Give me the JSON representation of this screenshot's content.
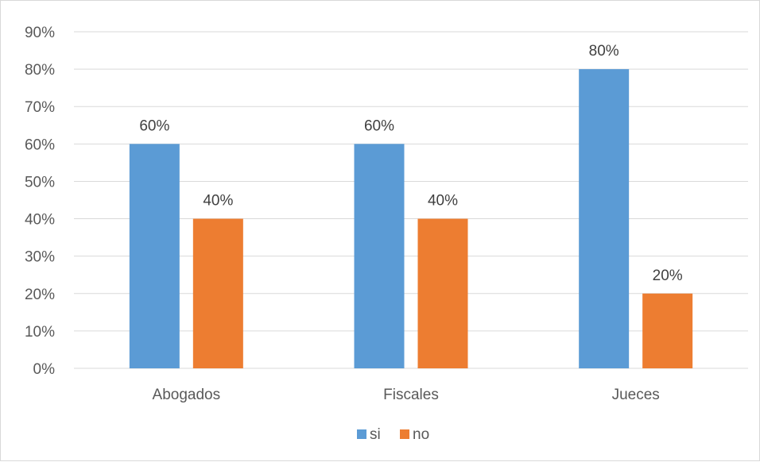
{
  "chart_data": {
    "type": "bar",
    "categories": [
      "Abogados",
      "Fiscales",
      "Jueces"
    ],
    "series": [
      {
        "name": "si",
        "values": [
          60,
          60,
          80
        ],
        "labels": [
          "60%",
          "60%",
          "80%"
        ],
        "color": "#5b9bd5"
      },
      {
        "name": "no",
        "values": [
          40,
          40,
          20
        ],
        "labels": [
          "40%",
          "40%",
          "20%"
        ],
        "color": "#ed7d31"
      }
    ],
    "yticks": [
      "0%",
      "10%",
      "20%",
      "30%",
      "40%",
      "50%",
      "60%",
      "70%",
      "80%",
      "90%"
    ],
    "ylim": [
      0,
      90
    ],
    "grid": true,
    "legend_position": "bottom",
    "gridline_color": "#d9d9d9"
  }
}
